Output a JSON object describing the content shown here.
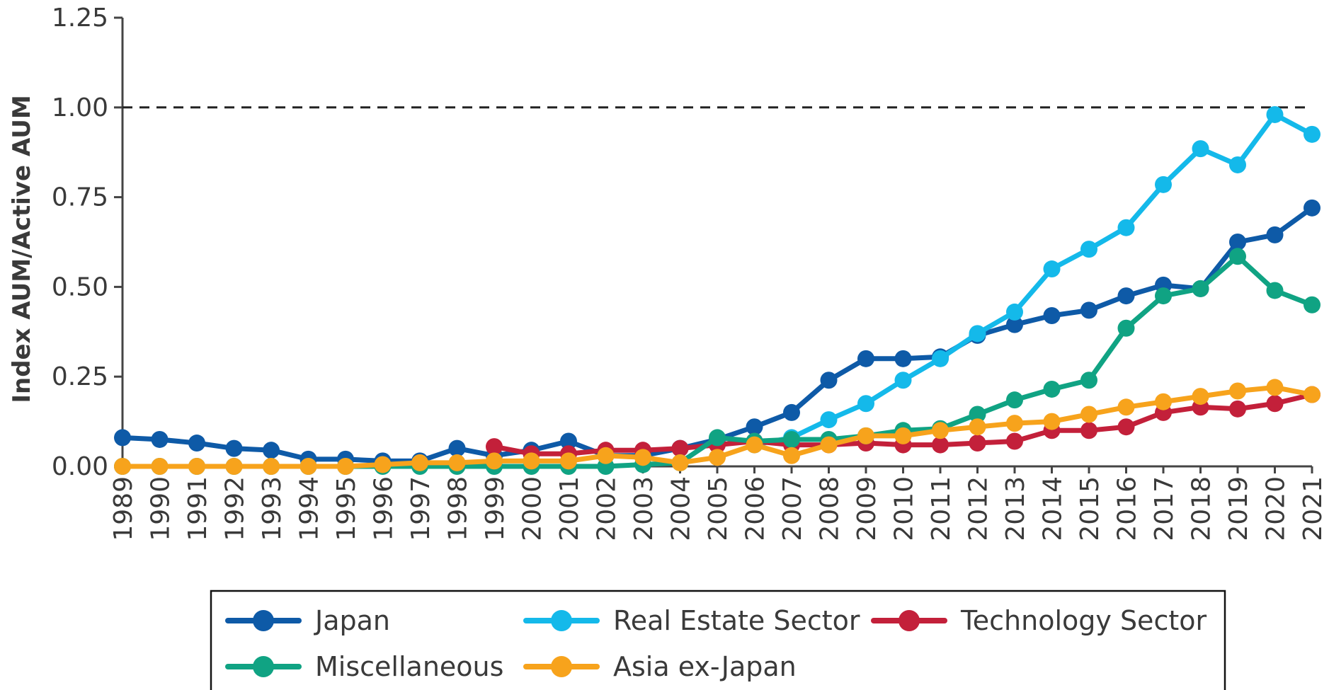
{
  "chart_data": {
    "type": "line",
    "title": "",
    "xlabel": "",
    "ylabel": "Index AUM/Active AUM",
    "x": [
      1989,
      1990,
      1991,
      1992,
      1993,
      1994,
      1995,
      1996,
      1997,
      1998,
      1999,
      2000,
      2001,
      2002,
      2003,
      2004,
      2005,
      2006,
      2007,
      2008,
      2009,
      2010,
      2011,
      2012,
      2013,
      2014,
      2015,
      2016,
      2017,
      2018,
      2019,
      2020,
      2021
    ],
    "x_tick_labels": [
      "1989",
      "1990",
      "1991",
      "1992",
      "1993",
      "1994",
      "1995",
      "1996",
      "1997",
      "1998",
      "1999",
      "2000",
      "2001",
      "2002",
      "2003",
      "2004",
      "2005",
      "2006",
      "2007",
      "2008",
      "2009",
      "2010",
      "2011",
      "2012",
      "2013",
      "2014",
      "2015",
      "2016",
      "2017",
      "2018",
      "2019",
      "2020",
      "2021"
    ],
    "ylim": [
      0,
      1.25
    ],
    "y_ticks": [
      0,
      0.25,
      0.5,
      0.75,
      1.0,
      1.25
    ],
    "y_tick_labels": [
      "0.00",
      "0.25",
      "0.50",
      "0.75",
      "1.00",
      "1.25"
    ],
    "reference_line": {
      "y": 1.0,
      "style": "dashed"
    },
    "grid": false,
    "legend_position": "bottom",
    "series": [
      {
        "name": "Japan",
        "color": "#0e5aa7",
        "values": [
          0.08,
          0.075,
          0.065,
          0.05,
          0.045,
          0.02,
          0.02,
          0.015,
          0.015,
          0.05,
          0.03,
          0.045,
          0.07,
          0.03,
          0.03,
          0.05,
          0.075,
          0.11,
          0.15,
          0.24,
          0.3,
          0.3,
          0.305,
          0.365,
          0.395,
          0.42,
          0.435,
          0.475,
          0.505,
          0.495,
          0.625,
          0.645,
          0.72
        ]
      },
      {
        "name": "Real Estate Sector",
        "color": "#14b9ea",
        "values": [
          null,
          null,
          null,
          null,
          null,
          null,
          null,
          null,
          null,
          null,
          null,
          null,
          null,
          null,
          null,
          null,
          null,
          0.06,
          0.08,
          0.13,
          0.175,
          0.24,
          0.3,
          0.37,
          0.43,
          0.55,
          0.605,
          0.665,
          0.785,
          0.885,
          0.84,
          0.98,
          0.925
        ]
      },
      {
        "name": "Technology Sector",
        "color": "#c3203a",
        "values": [
          null,
          null,
          null,
          null,
          null,
          null,
          null,
          null,
          null,
          null,
          0.055,
          0.035,
          0.035,
          0.045,
          0.045,
          0.05,
          0.06,
          0.07,
          0.06,
          0.06,
          0.065,
          0.06,
          0.06,
          0.065,
          0.07,
          0.1,
          0.1,
          0.11,
          0.15,
          0.165,
          0.16,
          0.175,
          0.2
        ]
      },
      {
        "name": "Miscellaneous",
        "color": "#10a383",
        "values": [
          0.0,
          0.0,
          0.0,
          0.0,
          0.0,
          0.0,
          0.0,
          0.0,
          0.0,
          0.0,
          0.0,
          0.0,
          0.0,
          0.0,
          0.005,
          0.01,
          0.08,
          0.07,
          0.075,
          0.075,
          0.085,
          0.1,
          0.105,
          0.145,
          0.185,
          0.215,
          0.24,
          0.385,
          0.475,
          0.495,
          0.585,
          0.49,
          0.45
        ]
      },
      {
        "name": "Asia ex-Japan",
        "color": "#f7a31c",
        "values": [
          0.0,
          0.0,
          0.0,
          0.0,
          0.0,
          0.0,
          0.0,
          0.005,
          0.01,
          0.01,
          0.015,
          0.015,
          0.015,
          0.03,
          0.025,
          0.01,
          0.025,
          0.06,
          0.03,
          0.06,
          0.085,
          0.085,
          0.1,
          0.11,
          0.12,
          0.125,
          0.145,
          0.165,
          0.18,
          0.195,
          0.21,
          0.22,
          0.2
        ]
      }
    ],
    "legend_order": [
      "Japan",
      "Real Estate Sector",
      "Technology Sector",
      "Miscellaneous",
      "Asia ex-Japan"
    ]
  }
}
